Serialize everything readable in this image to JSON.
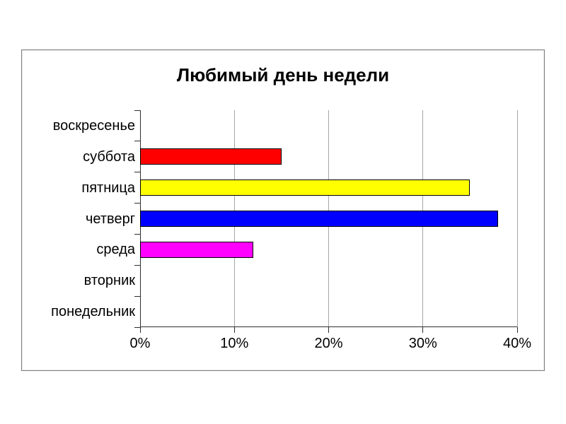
{
  "page": {
    "background_color": "#ffffff",
    "frame_border_color": "#808080"
  },
  "chart_data": {
    "type": "bar",
    "orientation": "horizontal",
    "title": "Любимый день недели",
    "categories": [
      "воскресенье",
      "суббота",
      "пятница",
      "четверг",
      "среда",
      "вторник",
      "понедельник"
    ],
    "values": [
      0,
      15,
      35,
      38,
      12,
      0,
      0
    ],
    "bar_colors": [
      null,
      "#ff0000",
      "#ffff00",
      "#0000ff",
      "#ff00ff",
      null,
      null
    ],
    "bar_border_color": "#000000",
    "x_ticks": [
      "0%",
      "10%",
      "20%",
      "30%",
      "40%"
    ],
    "x_tick_values": [
      0,
      10,
      20,
      30,
      40
    ],
    "xlim": [
      0,
      40
    ],
    "xlabel": "",
    "ylabel": "",
    "legend": "none",
    "grid": "vertical",
    "gridline_color": "#a6a6a6",
    "axis_color": "#2e2e2e",
    "text_color": "#000000"
  }
}
